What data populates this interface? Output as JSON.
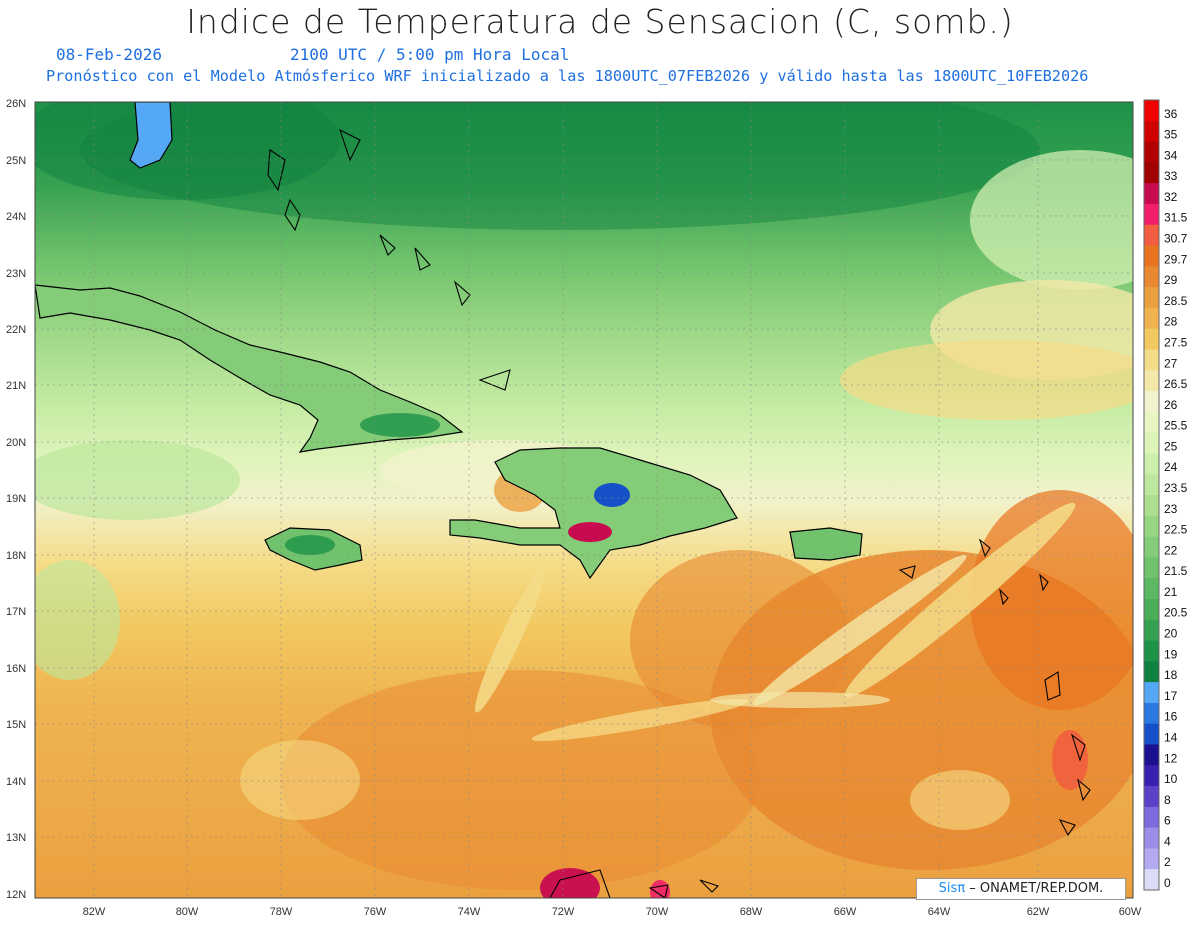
{
  "header": {
    "title": "Indice de Temperatura de Sensacion (C, somb.)",
    "date": "08-Feb-2026",
    "time": "2100 UTC / 5:00 pm Hora Local",
    "description": "Pronóstico con el Modelo Atmósferico WRF inicializado a las 1800UTC_07FEB2026 y válido hasta las  1800UTC_10FEB2026"
  },
  "map": {
    "lat_labels": [
      "26N",
      "25N",
      "24N",
      "23N",
      "22N",
      "21N",
      "20N",
      "19N",
      "18N",
      "17N",
      "16N",
      "15N",
      "14N",
      "13N",
      "12N"
    ],
    "lon_labels": [
      "82W",
      "80W",
      "78W",
      "76W",
      "74W",
      "72W",
      "70W",
      "68W",
      "66W",
      "64W",
      "62W",
      "60W"
    ],
    "lat_range": [
      12,
      26
    ],
    "lon_range": [
      -83.3,
      -60
    ],
    "grid": "dotted",
    "coastline_color": "#000000"
  },
  "colorbar": {
    "placement": "right",
    "levels": [
      "0",
      "2",
      "4",
      "6",
      "8",
      "10",
      "12",
      "14",
      "16",
      "17",
      "18",
      "19",
      "20",
      "20.5",
      "21",
      "21.5",
      "22",
      "22.5",
      "23",
      "23.5",
      "24",
      "25",
      "25.5",
      "26",
      "26.5",
      "27",
      "27.5",
      "28",
      "28.5",
      "29",
      "29.7",
      "30.7",
      "31.5",
      "32",
      "33",
      "34",
      "35",
      "36"
    ],
    "colors": [
      "#dcdcf8",
      "#b4aaf2",
      "#9a8ee8",
      "#7e6adc",
      "#5c40c8",
      "#3a20b0",
      "#1a1090",
      "#1550c8",
      "#2a78e0",
      "#55a8f5",
      "#0f8040",
      "#1e9248",
      "#35a050",
      "#4aad58",
      "#5cb862",
      "#70c26c",
      "#84cc78",
      "#98d684",
      "#acdf90",
      "#bce79c",
      "#ccefac",
      "#dcf4b8",
      "#e8f6c4",
      "#f2f2cc",
      "#f4e8a8",
      "#f5dc88",
      "#f2c860",
      "#efb450",
      "#eba040",
      "#e88830",
      "#e87420",
      "#f25c40",
      "#f21e6a",
      "#c80a50",
      "#a00000",
      "#b00000",
      "#d00000",
      "#f00000"
    ]
  },
  "credit": {
    "sis": "Sis",
    "pi": "π",
    "rest": "– ONAMET/REP.DOM."
  }
}
